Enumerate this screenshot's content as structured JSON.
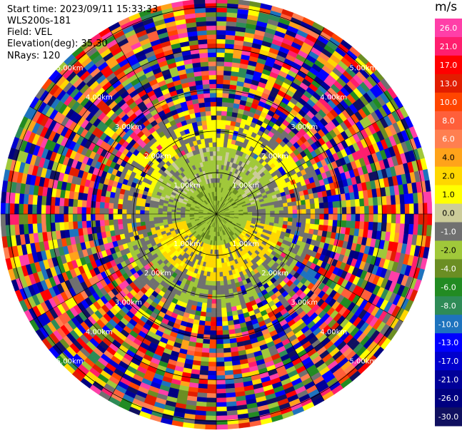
{
  "header": {
    "start_time": "Start time: 2023/09/11 15:33:33",
    "instrument": "WLS200s-181",
    "field": "Field: VEL",
    "elevation": "Elevation(deg): 35.30",
    "nrays": "NRays: 120"
  },
  "colorbar": {
    "unit": "m/s",
    "ticks": [
      "26.0",
      "21.0",
      "17.0",
      "13.0",
      "10.0",
      "8.0",
      "6.0",
      "4.0",
      "2.0",
      "1.0",
      "0.0",
      "-1.0",
      "-2.0",
      "-4.0",
      "-6.0",
      "-8.0",
      "-10.0",
      "-13.0",
      "-17.0",
      "-21.0",
      "-26.0",
      "-30.0"
    ],
    "colors": [
      "#ff3fa8",
      "#ff1e6e",
      "#ff0000",
      "#e21d00",
      "#ff4500",
      "#ff5f3a",
      "#ff7f50",
      "#ffa31a",
      "#ffd700",
      "#ffff00",
      "#cccc99",
      "#707070",
      "#a0c83a",
      "#6b8e23",
      "#228b22",
      "#2e8b57",
      "#1e73be",
      "#0000ff",
      "#0000cd",
      "#000099",
      "#000080",
      "#101060"
    ]
  },
  "chart_data": {
    "type": "ppi",
    "field": "VEL",
    "units": "m/s",
    "nrays": 120,
    "elevation_deg": 35.3,
    "range_rings": [
      "1.00km",
      "2.00km",
      "3.00km",
      "4.00km",
      "5.00km"
    ],
    "range_ring_km": [
      1,
      2,
      3,
      4,
      5
    ],
    "max_range_km": 5.2,
    "colormap_min": -30.0,
    "colormap_max": 26.0
  }
}
